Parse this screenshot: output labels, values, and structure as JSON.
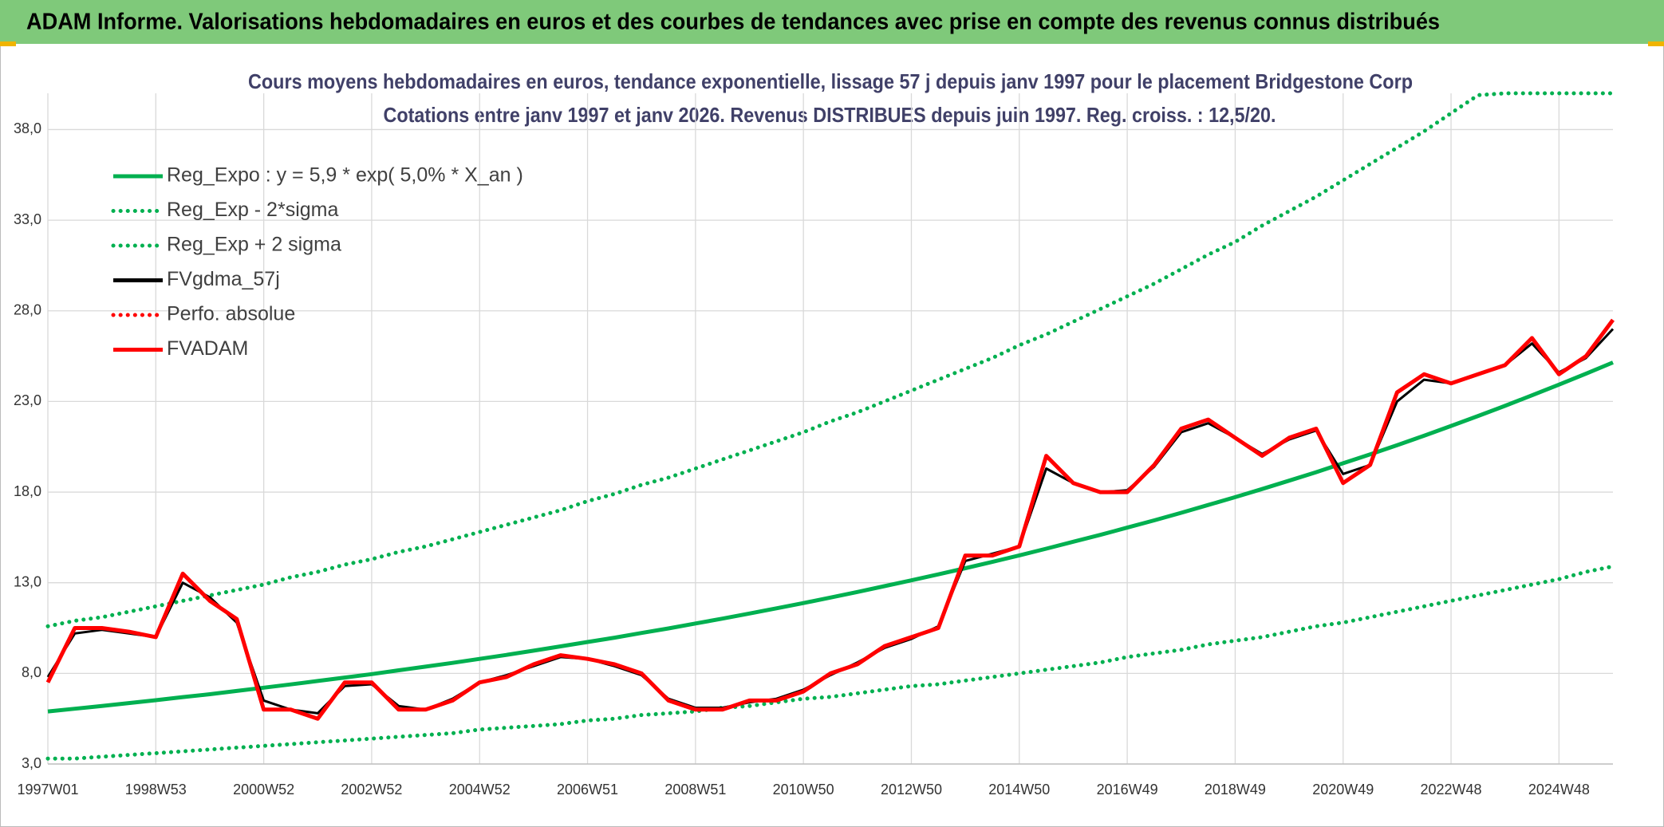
{
  "header": {
    "title": "ADAM Informe. Valorisations hebdomadaires en euros et des courbes de tendances avec prise en compte des revenus connus distribués"
  },
  "chart_data": {
    "type": "line",
    "title": "Cours moyens hebdomadaires en euros, tendance exponentielle, lissage 57 j depuis janv 1997 pour le placement Bridgestone Corp",
    "subtitle": "Cotations entre janv 1997 et janv 2026. Revenus DISTRIBUES depuis juin 1997. Reg. croiss. : 12,5/20.",
    "categories": [
      "1997W01",
      null,
      null,
      null,
      "1998W53",
      null,
      null,
      null,
      "2000W52",
      null,
      null,
      null,
      "2002W52",
      null,
      null,
      null,
      "2004W52",
      null,
      null,
      null,
      "2006W51",
      null,
      null,
      null,
      "2008W51",
      null,
      null,
      null,
      "2010W50",
      null,
      null,
      null,
      "2012W50",
      null,
      null,
      null,
      "2014W50",
      null,
      null,
      null,
      "2016W49",
      null,
      null,
      null,
      "2018W49",
      null,
      null,
      null,
      "2020W49",
      null,
      null,
      null,
      "2022W48",
      null,
      null,
      null,
      "2024W48",
      null,
      null
    ],
    "ylim": [
      3,
      40
    ],
    "yticks": [
      {
        "value": 3,
        "label": "3,0"
      },
      {
        "value": 8,
        "label": "8,0"
      },
      {
        "value": 13,
        "label": "13,0"
      },
      {
        "value": 18,
        "label": "18,0"
      },
      {
        "value": 23,
        "label": "23,0"
      },
      {
        "value": 28,
        "label": "28,0"
      },
      {
        "value": 33,
        "label": "33,0"
      },
      {
        "value": 38,
        "label": "38,0"
      }
    ],
    "grid": true,
    "legend": "upper left",
    "series": [
      {
        "name": "Reg_Expo : y = 5,9 * exp( 5,0% *  X_an )",
        "color": "#00b050",
        "dash": "solid",
        "values": [
          5.9,
          6.05,
          6.2,
          6.36,
          6.52,
          6.69,
          6.85,
          7.03,
          7.21,
          7.39,
          7.58,
          7.77,
          7.96,
          8.17,
          8.37,
          8.58,
          8.8,
          9.02,
          9.25,
          9.49,
          9.73,
          9.97,
          10.23,
          10.48,
          10.75,
          11.02,
          11.3,
          11.59,
          11.88,
          12.18,
          12.49,
          12.81,
          13.13,
          13.46,
          13.8,
          14.15,
          14.51,
          14.88,
          15.26,
          15.64,
          16.04,
          16.44,
          16.86,
          17.29,
          17.72,
          18.17,
          18.63,
          19.1,
          19.59,
          20.08,
          20.59,
          21.11,
          21.65,
          22.2,
          22.76,
          23.34,
          23.93,
          24.53,
          25.15
        ]
      },
      {
        "name": "Reg_Exp - 2*sigma",
        "color": "#00b050",
        "dash": "dotted",
        "values": [
          3.3,
          3.3,
          3.4,
          3.5,
          3.6,
          3.7,
          3.8,
          3.9,
          4.0,
          4.1,
          4.2,
          4.3,
          4.4,
          4.5,
          4.6,
          4.7,
          4.9,
          5.0,
          5.1,
          5.2,
          5.4,
          5.5,
          5.7,
          5.8,
          5.9,
          6.1,
          6.2,
          6.4,
          6.6,
          6.7,
          6.9,
          7.1,
          7.3,
          7.4,
          7.6,
          7.8,
          8.0,
          8.2,
          8.4,
          8.6,
          8.9,
          9.1,
          9.3,
          9.6,
          9.8,
          10.0,
          10.3,
          10.6,
          10.8,
          11.1,
          11.4,
          11.7,
          12.0,
          12.3,
          12.6,
          12.9,
          13.2,
          13.6,
          13.9
        ]
      },
      {
        "name": "Reg_Exp + 2 sigma",
        "color": "#00b050",
        "dash": "dotted",
        "values": [
          10.6,
          10.9,
          11.1,
          11.4,
          11.7,
          12.0,
          12.3,
          12.6,
          12.9,
          13.3,
          13.6,
          14.0,
          14.3,
          14.7,
          15.0,
          15.4,
          15.8,
          16.2,
          16.6,
          17.0,
          17.5,
          17.9,
          18.4,
          18.8,
          19.3,
          19.8,
          20.3,
          20.8,
          21.3,
          21.9,
          22.4,
          23.0,
          23.6,
          24.2,
          24.8,
          25.4,
          26.1,
          26.7,
          27.4,
          28.1,
          28.8,
          29.5,
          30.3,
          31.1,
          31.8,
          32.7,
          33.5,
          34.3,
          35.2,
          36.1,
          37.0,
          37.9,
          38.9,
          39.9,
          40,
          40,
          40,
          40,
          40
        ]
      },
      {
        "name": "FVgdma_57j",
        "color": "#000000",
        "dash": "solid",
        "values": [
          7.8,
          10.2,
          10.4,
          10.2,
          10.0,
          13.0,
          12.2,
          10.8,
          6.5,
          6.0,
          5.8,
          7.3,
          7.4,
          6.2,
          6.0,
          6.6,
          7.5,
          7.9,
          8.4,
          8.9,
          8.8,
          8.4,
          7.9,
          6.6,
          6.1,
          6.1,
          6.4,
          6.6,
          7.1,
          7.9,
          8.6,
          9.4,
          9.9,
          10.6,
          14.2,
          14.6,
          15.0,
          19.3,
          18.5,
          18.0,
          18.1,
          19.4,
          21.3,
          21.8,
          21.0,
          20.1,
          20.9,
          21.4,
          19.0,
          19.5,
          23.0,
          24.2,
          24.0,
          24.5,
          25.0,
          26.2,
          24.6,
          25.4,
          27.0
        ]
      },
      {
        "name": "Perfo. absolue",
        "color": "#ff0000",
        "dash": "dotted",
        "values": [
          null,
          null,
          null,
          null,
          null,
          null,
          null,
          null,
          null,
          null,
          null,
          null,
          null,
          null,
          null,
          null,
          null,
          null,
          null,
          null,
          null,
          null,
          null,
          null,
          null,
          null,
          null,
          null,
          null,
          null,
          null,
          null,
          null,
          null,
          null,
          null,
          null,
          null,
          null,
          null,
          null,
          null,
          null,
          null,
          null,
          null,
          null,
          null,
          null,
          null,
          null,
          null,
          null,
          null,
          null,
          null,
          null,
          null,
          null
        ]
      },
      {
        "name": "FVADAM",
        "color": "#ff0000",
        "dash": "solid",
        "values": [
          7.5,
          10.5,
          10.5,
          10.3,
          10.0,
          13.5,
          12.0,
          11.0,
          6.0,
          6.0,
          5.5,
          7.5,
          7.5,
          6.0,
          6.0,
          6.5,
          7.5,
          7.8,
          8.5,
          9.0,
          8.8,
          8.5,
          8.0,
          6.5,
          6.0,
          6.0,
          6.5,
          6.5,
          7.0,
          8.0,
          8.5,
          9.5,
          10.0,
          10.5,
          14.5,
          14.5,
          15.0,
          20.0,
          18.5,
          18.0,
          18.0,
          19.5,
          21.5,
          22.0,
          21.0,
          20.0,
          21.0,
          21.5,
          18.5,
          19.5,
          23.5,
          24.5,
          24.0,
          24.5,
          25.0,
          26.5,
          24.5,
          25.5,
          27.5
        ]
      }
    ]
  }
}
